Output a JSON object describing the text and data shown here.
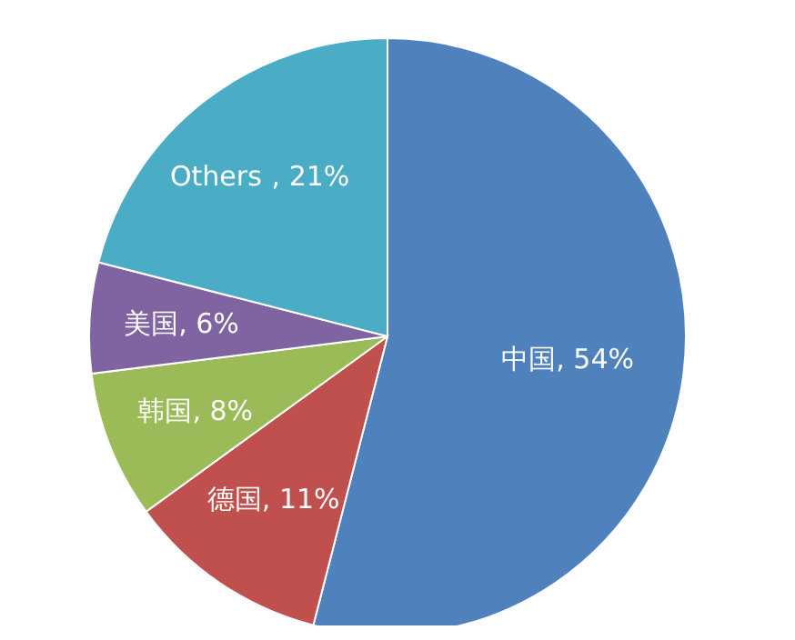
{
  "chart_data": {
    "type": "pie",
    "categories": [
      "中国",
      "德国",
      "韩国",
      "美国",
      "Others"
    ],
    "values": [
      54,
      11,
      8,
      6,
      21
    ],
    "colors": [
      "#4f81bd",
      "#c0504d",
      "#9bbb59",
      "#8064a2",
      "#4bacc6"
    ],
    "value_labels": [
      ", 54%",
      ", 11%",
      ", 8%",
      ", 6%",
      ", 21%"
    ]
  }
}
